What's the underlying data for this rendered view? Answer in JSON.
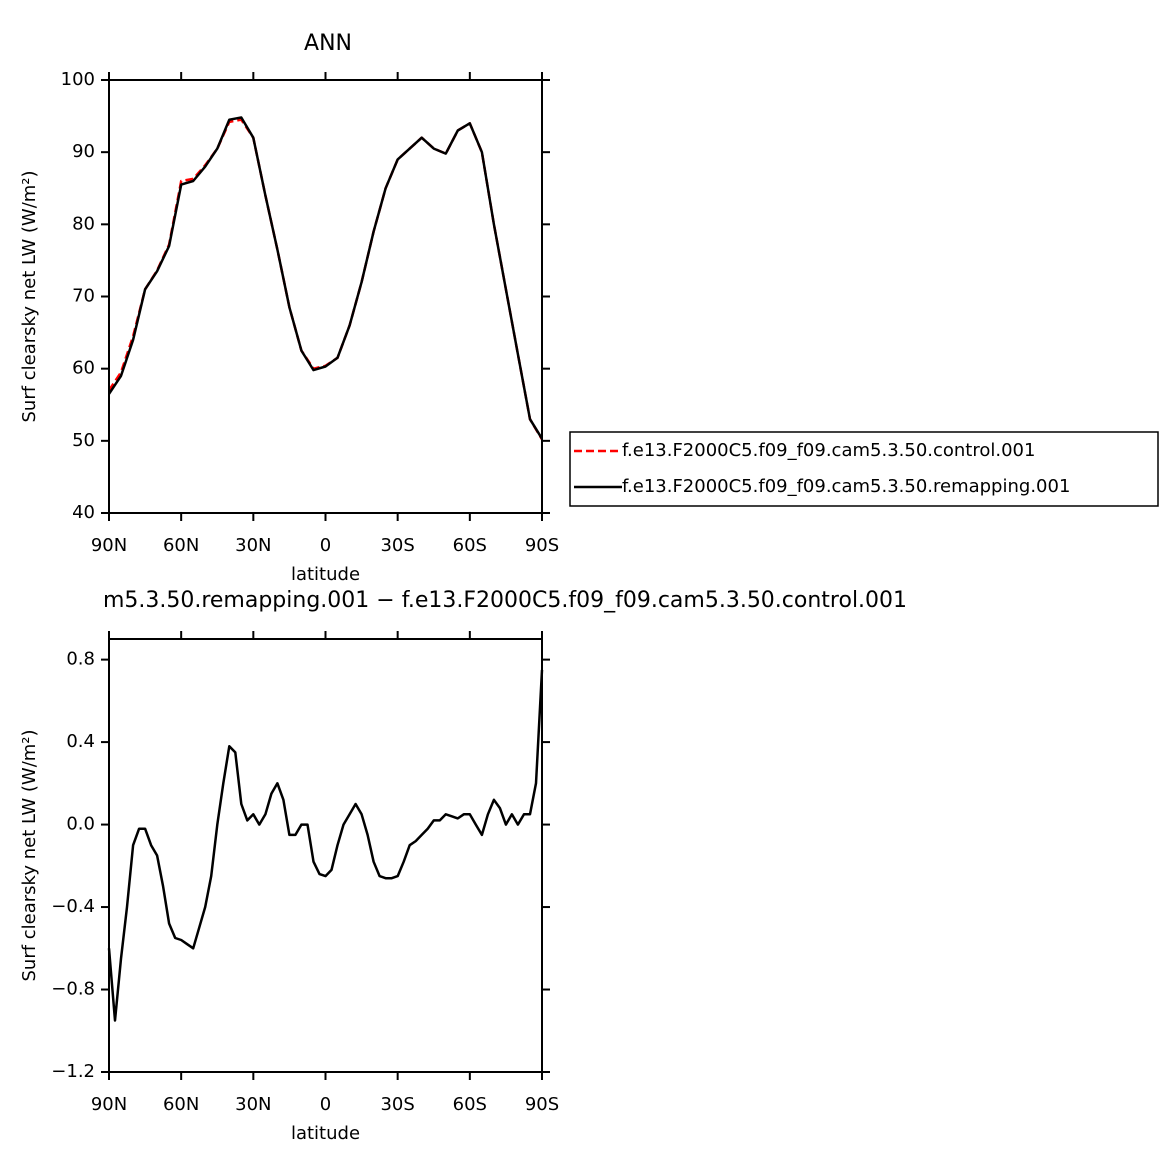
{
  "chart_data": [
    {
      "type": "line",
      "title": "ANN",
      "xlabel": "latitude",
      "ylabel": "Surf clearsky net LW (W/m²)",
      "x": [
        90,
        85,
        80,
        75,
        70,
        65,
        60,
        55,
        50,
        45,
        40,
        35,
        30,
        25,
        20,
        15,
        10,
        5,
        0,
        -5,
        -10,
        -15,
        -20,
        -25,
        -30,
        -35,
        -40,
        -45,
        -50,
        -55,
        -60,
        -65,
        -70,
        -75,
        -80,
        -85,
        -90
      ],
      "series": [
        {
          "name": "f.e13.F2000C5.f09_f09.cam5.3.50.control.001",
          "color": "#ff0000",
          "style": "dashed",
          "values": [
            57,
            59.5,
            64.5,
            71,
            73.6,
            77.2,
            86,
            86.3,
            88.2,
            90.5,
            94.2,
            94.5,
            92,
            84,
            76.5,
            68.5,
            62.5,
            60,
            60.4,
            61.5,
            66,
            72,
            79,
            85,
            89,
            90.5,
            92,
            90.5,
            89.8,
            93,
            94,
            90,
            80,
            71,
            62,
            53,
            50.2
          ]
        },
        {
          "name": "f.e13.F2000C5.f09_f09.cam5.3.50.remapping.001",
          "color": "#000000",
          "style": "solid",
          "values": [
            56.5,
            59,
            64,
            71,
            73.5,
            77,
            85.5,
            86,
            88,
            90.5,
            94.5,
            94.8,
            92,
            84,
            76.5,
            68.5,
            62.5,
            59.8,
            60.3,
            61.5,
            66,
            72,
            79,
            85,
            89,
            90.5,
            92,
            90.5,
            89.8,
            93,
            94,
            90,
            80,
            71,
            62,
            53,
            50.3
          ]
        }
      ],
      "xlim": [
        90,
        -90
      ],
      "xticks": [
        {
          "value": 90,
          "label": "90N"
        },
        {
          "value": 60,
          "label": "60N"
        },
        {
          "value": 30,
          "label": "30N"
        },
        0,
        {
          "value": -30,
          "label": "30S"
        },
        {
          "value": -60,
          "label": "60S"
        },
        {
          "value": -90,
          "label": "90S"
        }
      ],
      "ylim": [
        40,
        100
      ],
      "yticks": [
        40,
        50,
        60,
        70,
        80,
        90,
        100
      ],
      "legend": "right"
    },
    {
      "type": "line",
      "title": "m5.3.50.remapping.001 − f.e13.F2000C5.f09_f09.cam5.3.50.control.001",
      "xlabel": "latitude",
      "ylabel": "Surf clearsky net LW (W/m²)",
      "x": [
        90,
        87.5,
        85,
        82.5,
        80,
        77.5,
        75,
        72.5,
        70,
        67.5,
        65,
        62.5,
        60,
        57.5,
        55,
        52.5,
        50,
        47.5,
        45,
        42.5,
        40,
        37.5,
        35,
        32.5,
        30,
        27.5,
        25,
        22.5,
        20,
        17.5,
        15,
        12.5,
        10,
        7.5,
        5,
        2.5,
        0,
        -2.5,
        -5,
        -7.5,
        -10,
        -12.5,
        -15,
        -17.5,
        -20,
        -22.5,
        -25,
        -27.5,
        -30,
        -32.5,
        -35,
        -37.5,
        -40,
        -42.5,
        -45,
        -47.5,
        -50,
        -52.5,
        -55,
        -57.5,
        -60,
        -62.5,
        -65,
        -67.5,
        -70,
        -72.5,
        -75,
        -77.5,
        -80,
        -82.5,
        -85,
        -87.5,
        -90
      ],
      "series": [
        {
          "color": "#000000",
          "style": "solid",
          "values": [
            -0.6,
            -0.95,
            -0.65,
            -0.4,
            -0.1,
            -0.02,
            -0.02,
            -0.1,
            -0.15,
            -0.3,
            -0.48,
            -0.55,
            -0.56,
            -0.58,
            -0.6,
            -0.5,
            -0.4,
            -0.25,
            0,
            0.2,
            0.38,
            0.35,
            0.1,
            0.02,
            0.05,
            0,
            0.05,
            0.15,
            0.2,
            0.12,
            -0.05,
            -0.05,
            0,
            0,
            -0.18,
            -0.24,
            -0.25,
            -0.22,
            -0.1,
            0,
            0.05,
            0.1,
            0.05,
            -0.05,
            -0.18,
            -0.25,
            -0.26,
            -0.26,
            -0.25,
            -0.18,
            -0.1,
            -0.08,
            -0.05,
            -0.02,
            0.02,
            0.02,
            0.05,
            0.04,
            0.03,
            0.05,
            0.05,
            0,
            -0.05,
            0.05,
            0.12,
            0.08,
            0,
            0.05,
            0,
            0.05,
            0.05,
            0.2,
            0.75
          ]
        }
      ],
      "xlim": [
        90,
        -90
      ],
      "xticks": [
        {
          "value": 90,
          "label": "90N"
        },
        {
          "value": 60,
          "label": "60N"
        },
        {
          "value": 30,
          "label": "30N"
        },
        0,
        {
          "value": -30,
          "label": "30S"
        },
        {
          "value": -60,
          "label": "60S"
        },
        {
          "value": -90,
          "label": "90S"
        }
      ],
      "ylim": [
        -1.2,
        0.9
      ],
      "yticks": [
        {
          "value": -1.2,
          "label": "−1.2"
        },
        {
          "value": -0.8,
          "label": "−0.8"
        },
        {
          "value": -0.4,
          "label": "−0.4"
        },
        {
          "value": 0,
          "label": "0.0"
        },
        0.4,
        0.8
      ]
    }
  ]
}
